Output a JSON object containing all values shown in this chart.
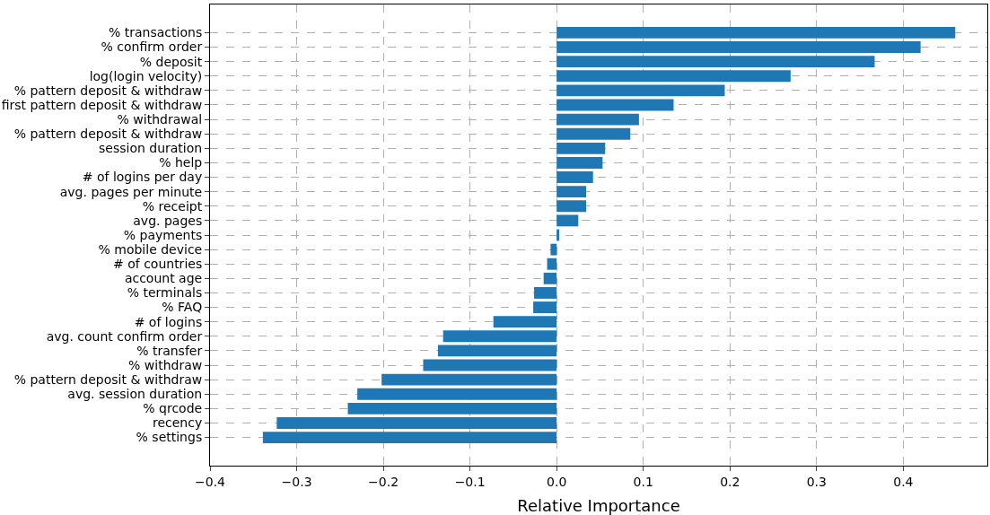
{
  "chart_data": {
    "type": "bar",
    "orientation": "horizontal",
    "xlabel": "Relative Importance",
    "categories": [
      "% transactions",
      "% confirm order",
      "% deposit",
      "log(login velocity)",
      "% pattern deposit & withdraw",
      "first pattern deposit & withdraw",
      "% withdrawal",
      "% pattern deposit & withdraw",
      "session duration",
      "% help",
      "# of logins per day",
      "avg. pages per minute",
      "% receipt",
      "avg. pages",
      "% payments",
      "% mobile device",
      "# of countries",
      "account age",
      "% terminals",
      "% FAQ",
      "# of logins",
      "avg. count confirm order",
      "% transfer",
      "% withdraw",
      "% pattern deposit & withdraw",
      "avg. session duration",
      "% qrcode",
      "recency",
      "% settings"
    ],
    "values": [
      0.46,
      0.42,
      0.367,
      0.27,
      0.194,
      0.135,
      0.095,
      0.085,
      0.056,
      0.053,
      0.042,
      0.034,
      0.034,
      0.025,
      0.003,
      -0.007,
      -0.011,
      -0.015,
      -0.026,
      -0.027,
      -0.073,
      -0.131,
      -0.137,
      -0.154,
      -0.202,
      -0.23,
      -0.241,
      -0.323,
      -0.339
    ],
    "color": "#1f77b4",
    "xlim": [
      -0.4,
      0.497
    ],
    "xticks": [
      {
        "value": -0.4,
        "label": "−0.4"
      },
      {
        "value": -0.3,
        "label": "−0.3"
      },
      {
        "value": -0.2,
        "label": "−0.2"
      },
      {
        "value": -0.1,
        "label": "−0.1"
      },
      {
        "value": 0,
        "label": "0.0"
      },
      {
        "value": 0.1,
        "label": "0.1"
      },
      {
        "value": 0.2,
        "label": "0.2"
      },
      {
        "value": 0.3,
        "label": "0.3"
      },
      {
        "value": 0.4,
        "label": "0.4"
      }
    ],
    "grid": true
  }
}
